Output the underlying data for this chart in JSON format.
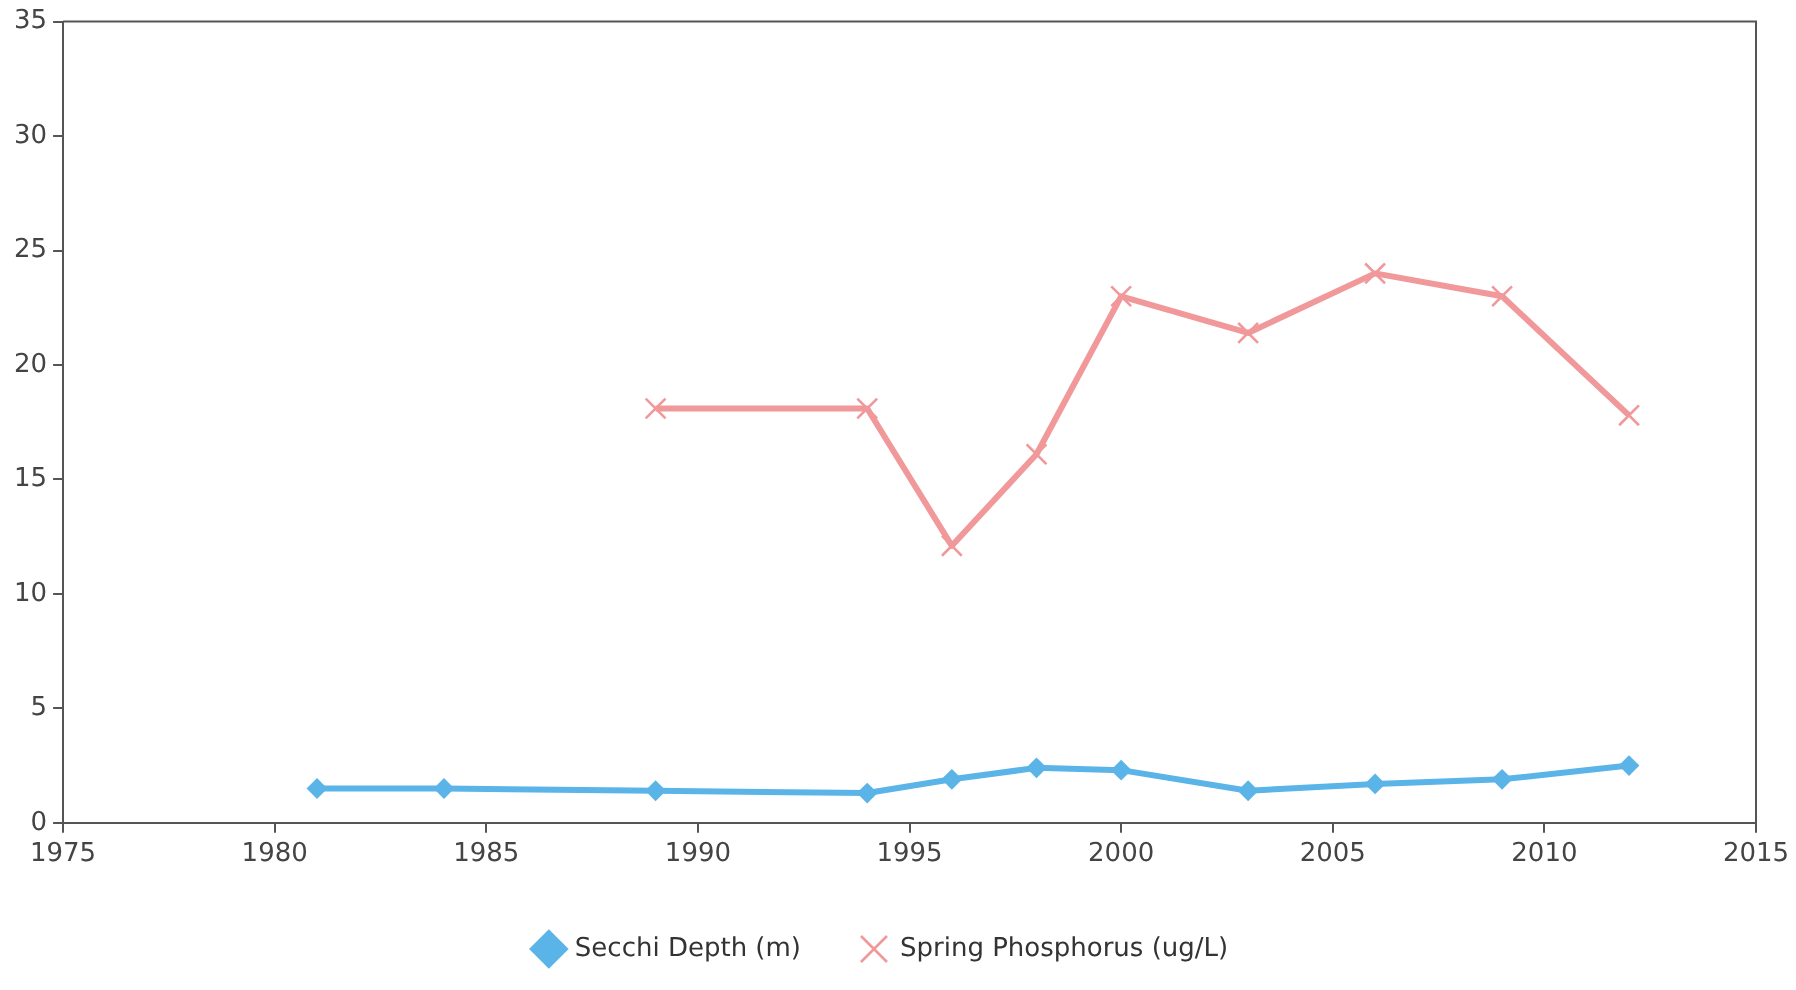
{
  "chart_data": {
    "type": "line",
    "xlim": [
      1975,
      2015
    ],
    "xticks": [
      1975,
      1980,
      1985,
      1990,
      1995,
      2000,
      2005,
      2010,
      2015
    ],
    "ylim": [
      0,
      35
    ],
    "yticks": [
      0,
      5,
      10,
      15,
      20,
      25,
      30,
      35
    ],
    "grid": false,
    "legend": "bottom",
    "line_style": "solid",
    "series": [
      {
        "name": "Secchi Depth (m)",
        "color": "#5bb4e8",
        "marker": "diamond",
        "x": [
          1981,
          1984,
          1989,
          1994,
          1996,
          1998,
          2000,
          2003,
          2006,
          2009,
          2012
        ],
        "values": [
          1.5,
          1.5,
          1.4,
          1.3,
          1.9,
          2.4,
          2.3,
          1.4,
          1.7,
          1.9,
          2.5
        ]
      },
      {
        "name": "Spring Phosphorus (ug/L)",
        "color": "#f0989a",
        "marker": "cross",
        "x": [
          1989,
          1994,
          1996,
          1998,
          2000,
          2003,
          2006,
          2009,
          2012
        ],
        "values": [
          18.1,
          18.1,
          12.1,
          16.1,
          23,
          21.4,
          24,
          23,
          17.8
        ]
      }
    ]
  }
}
